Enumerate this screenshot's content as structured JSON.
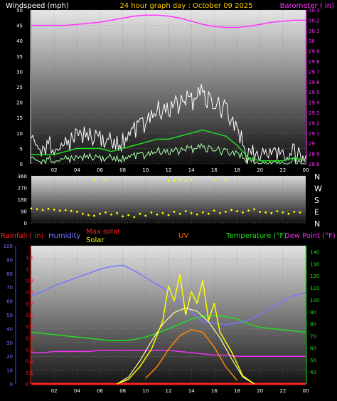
{
  "header": {
    "wind_label": "Windspeed (mph)",
    "date_title": "24 hour graph day : October 09 2025",
    "baro_label": "Barometer ( in)"
  },
  "panel3_labels": {
    "rainfall": "Rainfall ( in)",
    "humidity": "Humidity",
    "max_solar": "Max solar",
    "solar": "Solar",
    "uv": "UV",
    "temperature": "Temperature (°F)",
    "dew_point": "Dew Point (°F)"
  },
  "compass": [
    "N",
    "W",
    "S",
    "E",
    "N"
  ],
  "x_ticks": [
    "02",
    "04",
    "06",
    "08",
    "10",
    "12",
    "14",
    "16",
    "18",
    "20",
    "22",
    "00"
  ],
  "colors": {
    "wind_axis": "#ffffff",
    "baro": "#ff33ff",
    "gust": "#ffffff",
    "wind_avg": "#22dd22",
    "wind_low": "#aaffaa",
    "direction": "#ffff00",
    "rain": "#ff2222",
    "humidity": "#7777ff",
    "temperature": "#22dd22",
    "dew_point": "#ee33ee",
    "uv": "#ff8800",
    "solar": "#ffff00",
    "max_solar": "#ffffaa"
  },
  "chart_data": [
    {
      "type": "line",
      "title": "24 hour graph day : October 09 2025",
      "x_range_hours": [
        0,
        24
      ],
      "x_tick_labels": [
        "02",
        "04",
        "06",
        "08",
        "10",
        "12",
        "14",
        "16",
        "18",
        "20",
        "22",
        "00"
      ],
      "left_axis": {
        "label": "Windspeed (mph)",
        "range": [
          0,
          50
        ],
        "ticks": [
          0,
          5,
          10,
          15,
          20,
          25,
          30,
          35,
          40,
          45,
          50
        ]
      },
      "right_axis": {
        "label": "Barometer ( in)",
        "range": [
          28.8,
          30.3
        ],
        "ticks": [
          "28.8",
          "28.9",
          "29",
          "29.1",
          "29.2",
          "29.3",
          "29.4",
          "29.5",
          "29.6",
          "29.7",
          "29.8",
          "29.9",
          "30",
          "30.1",
          "30.2",
          "30.3"
        ]
      },
      "series": [
        {
          "name": "Barometer",
          "axis": "right",
          "x": [
            0,
            1,
            2,
            3,
            4,
            5,
            6,
            7,
            8,
            9,
            10,
            11,
            12,
            13,
            14,
            15,
            16,
            17,
            18,
            19,
            20,
            21,
            22,
            23,
            24
          ],
          "values": [
            30.15,
            30.15,
            30.15,
            30.15,
            30.16,
            30.17,
            30.18,
            30.2,
            30.22,
            30.24,
            30.25,
            30.25,
            30.24,
            30.22,
            30.19,
            30.16,
            30.14,
            30.13,
            30.13,
            30.14,
            30.16,
            30.18,
            30.19,
            30.2,
            30.2
          ]
        },
        {
          "name": "Gust",
          "axis": "left",
          "x": [
            0,
            1,
            2,
            3,
            4,
            5,
            6,
            7,
            8,
            9,
            10,
            11,
            12,
            13,
            14,
            15,
            16,
            17,
            18,
            19,
            20,
            21,
            22,
            23,
            24
          ],
          "values": [
            6,
            5,
            5,
            7,
            10,
            8,
            9,
            7,
            8,
            12,
            14,
            17,
            18,
            19,
            21,
            22,
            20,
            18,
            10,
            3,
            3,
            3,
            3,
            4,
            3
          ]
        },
        {
          "name": "Wind average",
          "axis": "left",
          "x": [
            0,
            1,
            2,
            3,
            4,
            5,
            6,
            7,
            8,
            9,
            10,
            11,
            12,
            13,
            14,
            15,
            16,
            17,
            18,
            19,
            20,
            21,
            22,
            23,
            24
          ],
          "values": [
            3,
            3,
            3,
            4,
            5,
            5,
            5,
            4,
            5,
            6,
            7,
            8,
            8,
            9,
            10,
            11,
            10,
            9,
            6,
            2,
            1,
            1,
            1,
            2,
            1
          ]
        },
        {
          "name": "Wind low",
          "axis": "left",
          "x": [
            0,
            1,
            2,
            3,
            4,
            5,
            6,
            7,
            8,
            9,
            10,
            11,
            12,
            13,
            14,
            15,
            16,
            17,
            18,
            19,
            20,
            21,
            22,
            23,
            24
          ],
          "values": [
            1,
            1,
            1,
            2,
            2,
            2,
            2,
            2,
            2,
            3,
            3,
            4,
            4,
            4,
            5,
            5,
            5,
            4,
            3,
            1,
            0,
            0,
            0,
            1,
            0
          ]
        }
      ]
    },
    {
      "type": "scatter",
      "left_axis": {
        "range": [
          0,
          360
        ],
        "ticks": [
          0,
          90,
          180,
          270,
          360
        ]
      },
      "right_labels": [
        "N",
        "W",
        "S",
        "E",
        "N"
      ],
      "series": [
        {
          "name": "Wind direction",
          "x": [
            0,
            0.5,
            1,
            1.5,
            2,
            2.5,
            3,
            3.5,
            4,
            4.5,
            5,
            5.5,
            6,
            6.5,
            7,
            7.5,
            8,
            8.5,
            9,
            9.5,
            10,
            10.5,
            11,
            11.5,
            12,
            12.5,
            13,
            13.5,
            14,
            14.5,
            15,
            15.5,
            16,
            16.5,
            17,
            17.5,
            18,
            18.5,
            19,
            19.5,
            20,
            20.5,
            21,
            21.5,
            22,
            22.5,
            23,
            23.5
          ],
          "values": [
            110,
            105,
            100,
            108,
            102,
            95,
            98,
            92,
            85,
            70,
            60,
            55,
            70,
            80,
            65,
            75,
            50,
            60,
            45,
            70,
            55,
            80,
            65,
            75,
            60,
            85,
            70,
            90,
            75,
            65,
            80,
            70,
            95,
            75,
            85,
            100,
            90,
            80,
            95,
            105,
            85,
            80,
            75,
            90,
            80,
            70,
            85,
            80
          ]
        },
        {
          "name": "Wind direction (NW)",
          "x": [
            5.5,
            6.5,
            12,
            12.5,
            13,
            13.5,
            14,
            16,
            17
          ],
          "values": [
            330,
            330,
            320,
            325,
            330,
            320,
            330,
            325,
            330
          ]
        }
      ]
    },
    {
      "type": "line",
      "left_axis_outer": {
        "label": "Humidity",
        "range": [
          0,
          100
        ],
        "ticks": [
          0,
          10,
          20,
          30,
          40,
          50,
          60,
          70,
          80,
          90,
          100
        ]
      },
      "left_axis_inner": {
        "label": "Rainfall ( in)",
        "range": [
          0,
          1.2
        ],
        "ticks": [
          "0",
          "0.1",
          "0.2",
          "0.3",
          "0.4",
          "0.5",
          "0.6",
          "0.7",
          "0.8",
          "0.9",
          "1",
          "1.1"
        ]
      },
      "right_axis": {
        "label": "Temperature (°F)",
        "range": [
          30,
          145
        ],
        "ticks": [
          40,
          50,
          60,
          70,
          80,
          90,
          100,
          110,
          120,
          130,
          140
        ]
      },
      "series": [
        {
          "name": "Humidity",
          "axis": "outer",
          "x": [
            0,
            1,
            2,
            3,
            4,
            5,
            6,
            7,
            8,
            9,
            10,
            11,
            12,
            13,
            14,
            15,
            16,
            17,
            18,
            19,
            20,
            21,
            22,
            23,
            24
          ],
          "values": [
            64,
            67,
            71,
            74,
            77,
            80,
            83,
            85,
            86,
            82,
            77,
            72,
            67,
            58,
            52,
            45,
            44,
            43,
            44,
            46,
            50,
            55,
            60,
            64,
            66
          ]
        },
        {
          "name": "Temperature",
          "axis": "right",
          "x": [
            0,
            1,
            2,
            3,
            4,
            5,
            6,
            7,
            8,
            9,
            10,
            11,
            12,
            13,
            14,
            15,
            16,
            17,
            18,
            19,
            20,
            21,
            22,
            23,
            24
          ],
          "values": [
            73,
            72,
            71,
            70,
            69,
            68,
            67,
            66,
            66,
            67,
            69,
            72,
            76,
            80,
            84,
            86,
            87,
            86,
            84,
            80,
            77,
            76,
            75,
            74,
            73
          ]
        },
        {
          "name": "Dew Point",
          "axis": "right",
          "x": [
            0,
            1,
            2,
            3,
            4,
            5,
            6,
            7,
            8,
            9,
            10,
            11,
            12,
            13,
            14,
            15,
            16,
            17,
            18,
            19,
            20,
            21,
            22,
            23,
            24
          ],
          "values": [
            56,
            56,
            57,
            57,
            57,
            57,
            58,
            58,
            58,
            58,
            58,
            58,
            58,
            57,
            56,
            55,
            54,
            54,
            53,
            53,
            53,
            53,
            53,
            53,
            53
          ]
        },
        {
          "name": "Rainfall",
          "axis": "inner",
          "x": [
            0,
            24
          ],
          "values": [
            0,
            0
          ]
        },
        {
          "name": "UV",
          "axis": "inner",
          "x": [
            10,
            11,
            12,
            13,
            14,
            15,
            16,
            17,
            18
          ],
          "values": [
            0.05,
            0.15,
            0.3,
            0.42,
            0.47,
            0.45,
            0.32,
            0.15,
            0.03
          ]
        },
        {
          "name": "Max solar",
          "axis": "inner",
          "x": [
            7.5,
            8.5,
            9.5,
            10.5,
            11.5,
            12.5,
            13.5,
            14.5,
            15.5,
            16.5,
            17.5,
            18.5,
            19.5
          ],
          "values": [
            0,
            0.06,
            0.2,
            0.37,
            0.52,
            0.62,
            0.66,
            0.63,
            0.54,
            0.4,
            0.22,
            0.06,
            0
          ]
        },
        {
          "name": "Solar",
          "axis": "inner",
          "x": [
            7.5,
            8.5,
            9.5,
            10.5,
            11.5,
            12,
            12.5,
            13,
            13.5,
            14,
            14.5,
            15,
            15.5,
            16,
            16.5,
            17.5,
            18.5,
            19.5
          ],
          "values": [
            0,
            0.04,
            0.15,
            0.3,
            0.55,
            0.85,
            0.72,
            0.95,
            0.6,
            0.8,
            0.7,
            0.9,
            0.55,
            0.7,
            0.45,
            0.28,
            0.07,
            0
          ]
        }
      ]
    }
  ]
}
